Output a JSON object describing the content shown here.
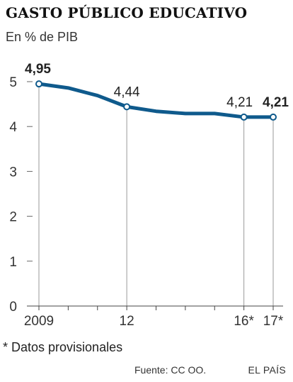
{
  "chart_data": {
    "type": "line",
    "title": "GASTO PÚBLICO EDUCATIVO",
    "subtitle": "En % de PIB",
    "x": [
      2009,
      2010,
      2011,
      2012,
      2013,
      2014,
      2015,
      2016,
      2017
    ],
    "x_ticks": [
      {
        "x": 2009,
        "label": "2009"
      },
      {
        "x": 2012,
        "label": "12"
      },
      {
        "x": 2016,
        "label": "16*"
      },
      {
        "x": 2017,
        "label": "17*"
      }
    ],
    "series": [
      {
        "values": [
          4.95,
          4.86,
          4.69,
          4.44,
          4.34,
          4.29,
          4.29,
          4.21,
          4.21
        ],
        "color": "#0f5a8c"
      }
    ],
    "labeled_points": [
      {
        "x": 2009,
        "label": "4,95",
        "bold": true
      },
      {
        "x": 2012,
        "label": "4,44",
        "bold": false
      },
      {
        "x": 2016,
        "label": "4,21",
        "bold": false
      },
      {
        "x": 2017,
        "label": "4,21",
        "bold": true
      }
    ],
    "y_ticks": [
      0,
      1,
      2,
      3,
      4,
      5
    ],
    "ylim": [
      0,
      5
    ],
    "grid": false,
    "footnote": "* Datos provisionales",
    "source": "Fuente: CC OO.",
    "brand": "EL PAÍS"
  }
}
